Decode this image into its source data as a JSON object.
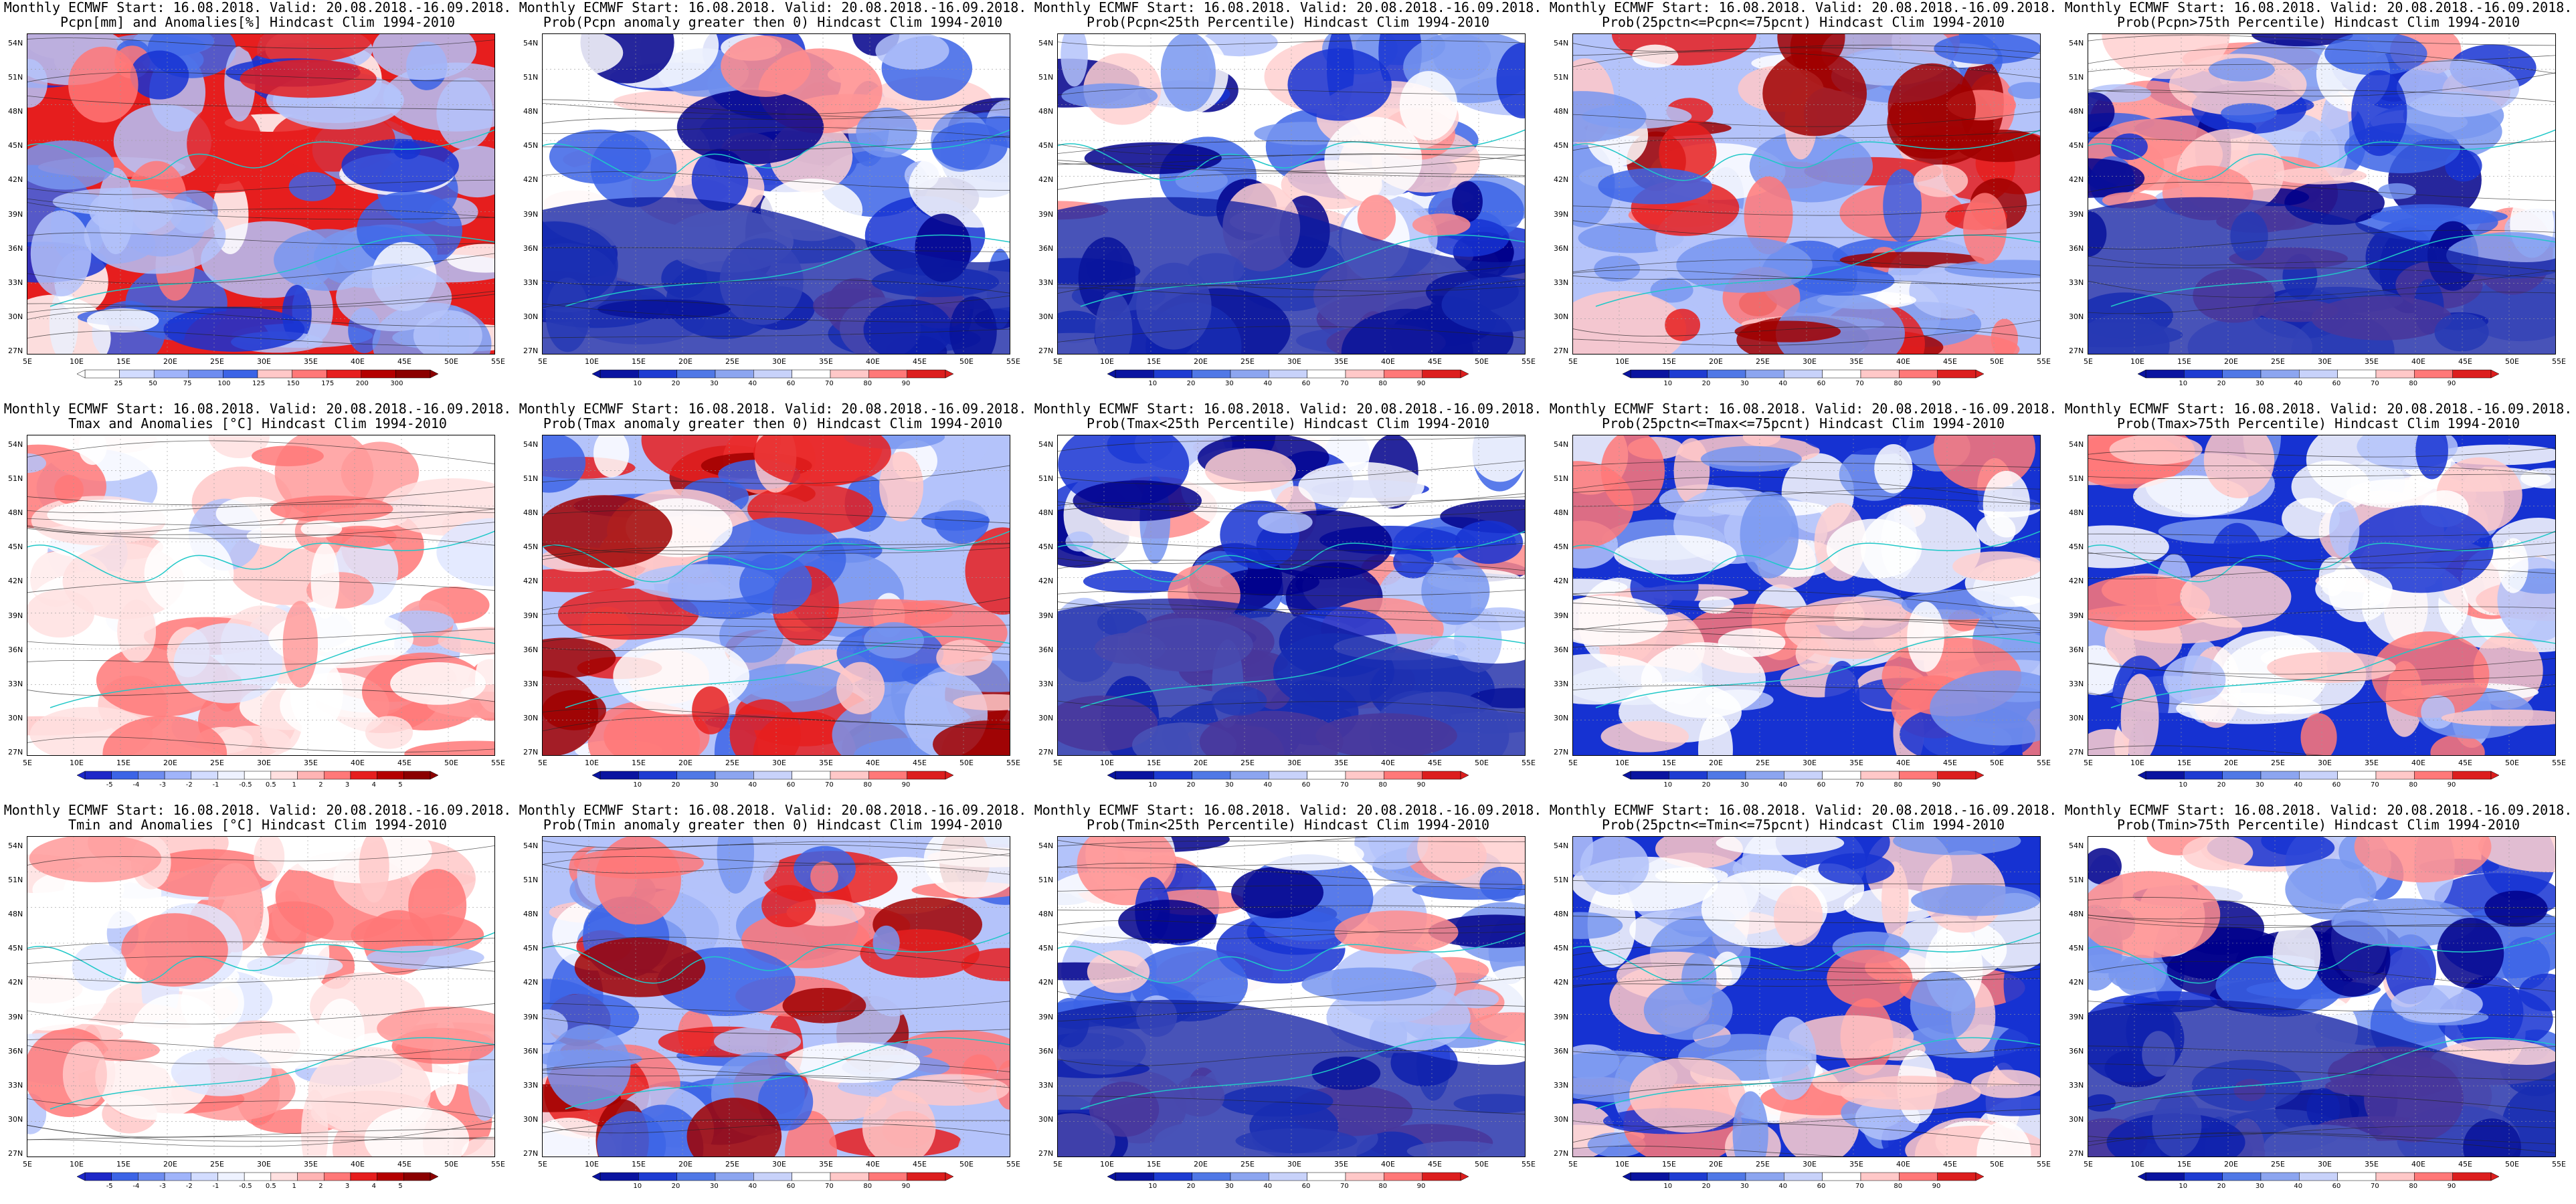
{
  "title_line1": "Monthly ECMWF Start: 16.08.2018. Valid: 20.08.2018.-16.09.2018.",
  "lat_labels": [
    "54N",
    "51N",
    "48N",
    "45N",
    "42N",
    "39N",
    "36N",
    "33N",
    "30N",
    "27N"
  ],
  "lon_labels": [
    "5E",
    "10E",
    "15E",
    "20E",
    "25E",
    "30E",
    "35E",
    "40E",
    "45E",
    "50E",
    "55E"
  ],
  "colors": {
    "blue_scale": [
      "#00008b",
      "#1632d2",
      "#3c64e6",
      "#7896f0",
      "#b4c3fa",
      "#ffffff",
      "#ffc8c8",
      "#ff7878",
      "#e61e1e",
      "#a00000"
    ],
    "coast": "#20c8c8",
    "contour": "#222222"
  },
  "panels": [
    {
      "subtitle": "Pcpn[mm] and Anomalies[%] Hindcast Clim 1994-2010",
      "scheme": "pcpn",
      "cb": [
        "25",
        "50",
        "75",
        "100",
        "125",
        "150",
        "175",
        "200",
        "300"
      ]
    },
    {
      "subtitle": "Prob(Pcpn anomaly greater then 0) Hindcast Clim 1994-2010",
      "scheme": "blue",
      "cb": [
        "10",
        "20",
        "30",
        "40",
        "60",
        "70",
        "80",
        "90"
      ]
    },
    {
      "subtitle": "Prob(Pcpn<25th Percentile) Hindcast Clim 1994-2010",
      "scheme": "blue",
      "cb": [
        "10",
        "20",
        "30",
        "40",
        "60",
        "70",
        "80",
        "90"
      ]
    },
    {
      "subtitle": "Prob(25pctn<=Pcpn<=75pcnt) Hindcast Clim 1994-2010",
      "scheme": "red",
      "cb": [
        "10",
        "20",
        "30",
        "40",
        "60",
        "70",
        "80",
        "90"
      ]
    },
    {
      "subtitle": "Prob(Pcpn>75th Percentile) Hindcast Clim 1994-2010",
      "scheme": "blue",
      "cb": [
        "10",
        "20",
        "30",
        "40",
        "60",
        "70",
        "80",
        "90"
      ]
    },
    {
      "subtitle": "Tmax and Anomalies [°C] Hindcast Clim 1994-2010",
      "scheme": "anom",
      "cb": [
        "-5",
        "-4",
        "-3",
        "-2",
        "-1",
        "-0.5",
        "0.5",
        "1",
        "2",
        "3",
        "4",
        "5"
      ]
    },
    {
      "subtitle": "Prob(Tmax anomaly greater then 0) Hindcast Clim 1994-2010",
      "scheme": "red",
      "cb": [
        "10",
        "20",
        "30",
        "40",
        "60",
        "70",
        "80",
        "90"
      ]
    },
    {
      "subtitle": "Prob(Tmax<25th Percentile) Hindcast Clim 1994-2010",
      "scheme": "blue",
      "cb": [
        "10",
        "20",
        "30",
        "40",
        "60",
        "70",
        "80",
        "90"
      ]
    },
    {
      "subtitle": "Prob(25pctn<=Tmax<=75pcnt) Hindcast Clim 1994-2010",
      "scheme": "mixed",
      "cb": [
        "10",
        "20",
        "30",
        "40",
        "60",
        "70",
        "80",
        "90"
      ]
    },
    {
      "subtitle": "Prob(Tmax>75th Percentile) Hindcast Clim 1994-2010",
      "scheme": "mixed",
      "cb": [
        "10",
        "20",
        "30",
        "40",
        "60",
        "70",
        "80",
        "90"
      ]
    },
    {
      "subtitle": "Tmin and Anomalies [°C] Hindcast Clim 1994-2010",
      "scheme": "anom",
      "cb": [
        "-5",
        "-4",
        "-3",
        "-2",
        "-1",
        "-0.5",
        "0.5",
        "1",
        "2",
        "3",
        "4",
        "5"
      ]
    },
    {
      "subtitle": "Prob(Tmin anomaly greater then 0) Hindcast Clim 1994-2010",
      "scheme": "red",
      "cb": [
        "10",
        "20",
        "30",
        "40",
        "60",
        "70",
        "80",
        "90"
      ]
    },
    {
      "subtitle": "Prob(Tmin<25th Percentile) Hindcast Clim 1994-2010",
      "scheme": "blue",
      "cb": [
        "10",
        "20",
        "30",
        "40",
        "60",
        "70",
        "80",
        "90"
      ]
    },
    {
      "subtitle": "Prob(25pctn<=Tmin<=75pcnt) Hindcast Clim 1994-2010",
      "scheme": "mixed",
      "cb": [
        "10",
        "20",
        "30",
        "40",
        "60",
        "70",
        "80",
        "90"
      ]
    },
    {
      "subtitle": "Prob(Tmin>75th Percentile) Hindcast Clim 1994-2010",
      "scheme": "blue",
      "cb": [
        "10",
        "20",
        "30",
        "40",
        "60",
        "70",
        "80",
        "90"
      ]
    }
  ]
}
